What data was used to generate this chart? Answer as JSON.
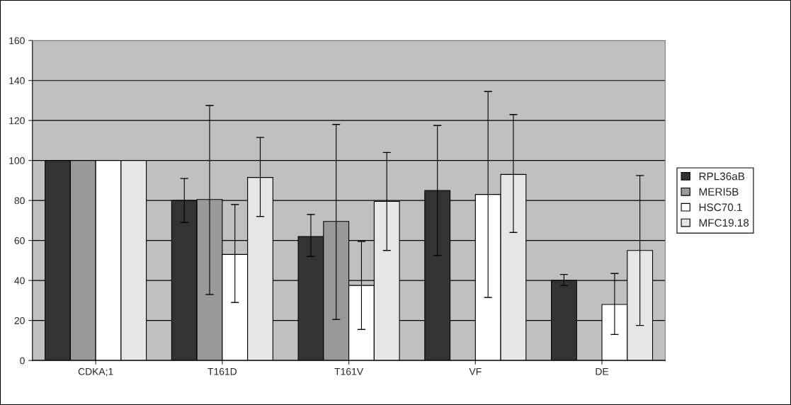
{
  "chart_data": {
    "type": "bar",
    "categories": [
      "CDKA;1",
      "T161D",
      "T161V",
      "VF",
      "DE"
    ],
    "series": [
      {
        "name": "RPL36aB",
        "color": "#333333",
        "values": [
          100,
          80,
          62,
          85,
          40
        ],
        "errors": [
          null,
          [
            69,
            91
          ],
          [
            52,
            73
          ],
          [
            52.5,
            117.5
          ],
          [
            37.5,
            43
          ]
        ]
      },
      {
        "name": "MERI5B",
        "color": "#999999",
        "values": [
          100,
          80.5,
          69.5,
          null,
          null
        ],
        "errors": [
          null,
          [
            33,
            127.5
          ],
          [
            20.5,
            118
          ],
          null,
          null
        ]
      },
      {
        "name": "HSC70.1",
        "color": "#ffffff",
        "values": [
          100,
          53,
          37.5,
          83,
          28
        ],
        "errors": [
          null,
          [
            29,
            78
          ],
          [
            15.5,
            59.5
          ],
          [
            31.5,
            134.5
          ],
          [
            13,
            43.5
          ]
        ]
      },
      {
        "name": "MFC19.18",
        "color": "#e6e6e6",
        "values": [
          100,
          91.5,
          79.5,
          93,
          55
        ],
        "errors": [
          null,
          [
            72,
            111.5
          ],
          [
            55,
            104
          ],
          [
            64,
            123
          ],
          [
            17.5,
            92.5
          ]
        ]
      }
    ],
    "ylim": [
      0,
      160
    ],
    "yticks": [
      0,
      20,
      40,
      60,
      80,
      100,
      120,
      140,
      160
    ],
    "grid": "y",
    "legend": "right"
  }
}
